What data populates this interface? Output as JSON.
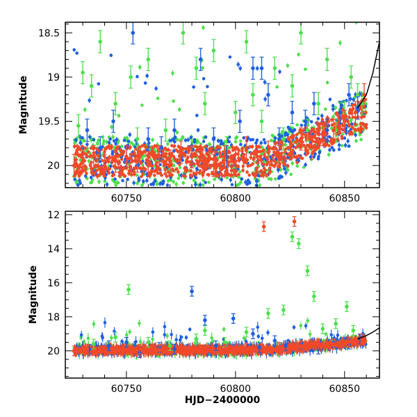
{
  "chart_data": [
    {
      "type": "scatter",
      "panel": "top",
      "xlabel": "",
      "ylabel": "Magnitude",
      "xlim": [
        60722,
        60866
      ],
      "ylim": [
        20.25,
        18.38
      ],
      "y_inverted": true,
      "xticks": [
        60750,
        60800,
        60850
      ],
      "yticks": [
        18.5,
        19,
        19.5,
        20
      ],
      "ytick_labels": [
        "18.5",
        "19",
        "19.5",
        "20"
      ],
      "colors": {
        "green": "#4ce04c",
        "blue": "#1f5fe0",
        "red": "#f04a2a"
      },
      "series": [
        {
          "color": "green",
          "x": [
            60728,
            60730,
            60734,
            60738,
            60745,
            60752,
            60755,
            60760,
            60768,
            60776,
            60782,
            60786,
            60790,
            60796,
            60800,
            60805,
            60808,
            60812,
            60818,
            60822,
            60826,
            60830,
            60833,
            60838,
            60842,
            60846,
            60850,
            60853,
            60856,
            60858
          ],
          "y": [
            19.55,
            18.95,
            19.1,
            18.6,
            19.3,
            19.0,
            19.7,
            18.8,
            19.6,
            18.5,
            18.9,
            19.3,
            18.7,
            19.8,
            19.4,
            18.6,
            19.2,
            19.5,
            18.9,
            19.7,
            19.1,
            18.5,
            19.6,
            19.3,
            18.8,
            19.6,
            19.4,
            19.0,
            19.2,
            19.3
          ]
        },
        {
          "color": "blue",
          "x": [
            60732,
            60738,
            60744,
            60750,
            60753,
            60760,
            60766,
            60772,
            60780,
            60784,
            60790,
            60796,
            60802,
            60808,
            60812,
            60815,
            60820,
            60826,
            60832,
            60836,
            60842,
            60848,
            60852,
            60856
          ],
          "y": [
            19.6,
            19.8,
            19.5,
            19.9,
            18.5,
            19.7,
            19.8,
            19.6,
            19.9,
            18.8,
            19.7,
            19.9,
            19.5,
            18.9,
            18.9,
            19.2,
            19.7,
            19.4,
            19.5,
            19.3,
            19.6,
            19.4,
            19.2,
            19.35
          ]
        },
        {
          "color": "red",
          "x": [
            60726,
            60730,
            60735,
            60740,
            60745,
            60750,
            60755,
            60760,
            60765,
            60770,
            60775,
            60780,
            60785,
            60790,
            60795,
            60800,
            60805,
            60810,
            60815,
            60820,
            60825,
            60830,
            60835,
            60840,
            60845,
            60850,
            60855,
            60859
          ],
          "y": [
            20.0,
            19.95,
            19.9,
            20.0,
            19.95,
            19.9,
            19.95,
            20.0,
            19.9,
            19.95,
            19.85,
            19.9,
            19.95,
            20.0,
            19.9,
            19.95,
            19.8,
            19.9,
            19.85,
            19.9,
            19.8,
            19.7,
            19.8,
            19.65,
            19.6,
            19.5,
            19.4,
            19.2
          ]
        }
      ]
    },
    {
      "type": "scatter",
      "panel": "bottom",
      "xlabel": "HJD−2400000",
      "ylabel": "Magnitude",
      "xlim": [
        60722,
        60866
      ],
      "ylim": [
        21.6,
        11.8
      ],
      "y_inverted": true,
      "xticks": [
        60750,
        60800,
        60850
      ],
      "yticks": [
        12,
        14,
        16,
        18,
        20
      ],
      "ytick_labels": [
        "12",
        "14",
        "16",
        "18",
        "20"
      ],
      "colors": {
        "green": "#4ce04c",
        "blue": "#1f5fe0",
        "red": "#f04a2a"
      },
      "series": [
        {
          "color": "green",
          "x": [
            60735,
            60745,
            60751,
            60760,
            60770,
            60782,
            60786,
            60795,
            60805,
            60815,
            60822,
            60826,
            60829,
            60833,
            60836,
            60840,
            60846,
            60851,
            60854
          ],
          "y": [
            19.6,
            19.2,
            16.4,
            19.5,
            19.7,
            19.3,
            18.8,
            19.5,
            18.9,
            17.8,
            17.6,
            13.3,
            13.7,
            15.3,
            16.8,
            18.7,
            18.4,
            17.4,
            18.8
          ]
        },
        {
          "color": "blue",
          "x": [
            60733,
            60742,
            60750,
            60756,
            60765,
            60772,
            60780,
            60786,
            60791,
            60799,
            60808,
            60811,
            60818,
            60823,
            60830,
            60838,
            60845,
            60852,
            60857
          ],
          "y": [
            19.9,
            19.7,
            19.5,
            20.1,
            19.8,
            19.9,
            16.5,
            18.2,
            19.7,
            18.1,
            19.0,
            19.8,
            19.4,
            19.7,
            19.6,
            19.9,
            19.5,
            19.6,
            19.3
          ]
        },
        {
          "color": "red",
          "x": [
            60726,
            60732,
            60740,
            60748,
            60756,
            60765,
            60775,
            60785,
            60795,
            60805,
            60813,
            60820,
            60827,
            60830,
            60838,
            60845,
            60852,
            60858
          ],
          "y": [
            20.0,
            19.9,
            20.0,
            19.95,
            19.9,
            19.95,
            19.9,
            19.95,
            19.9,
            19.85,
            12.7,
            19.8,
            12.4,
            19.7,
            19.6,
            19.6,
            19.5,
            19.3
          ]
        }
      ]
    }
  ]
}
